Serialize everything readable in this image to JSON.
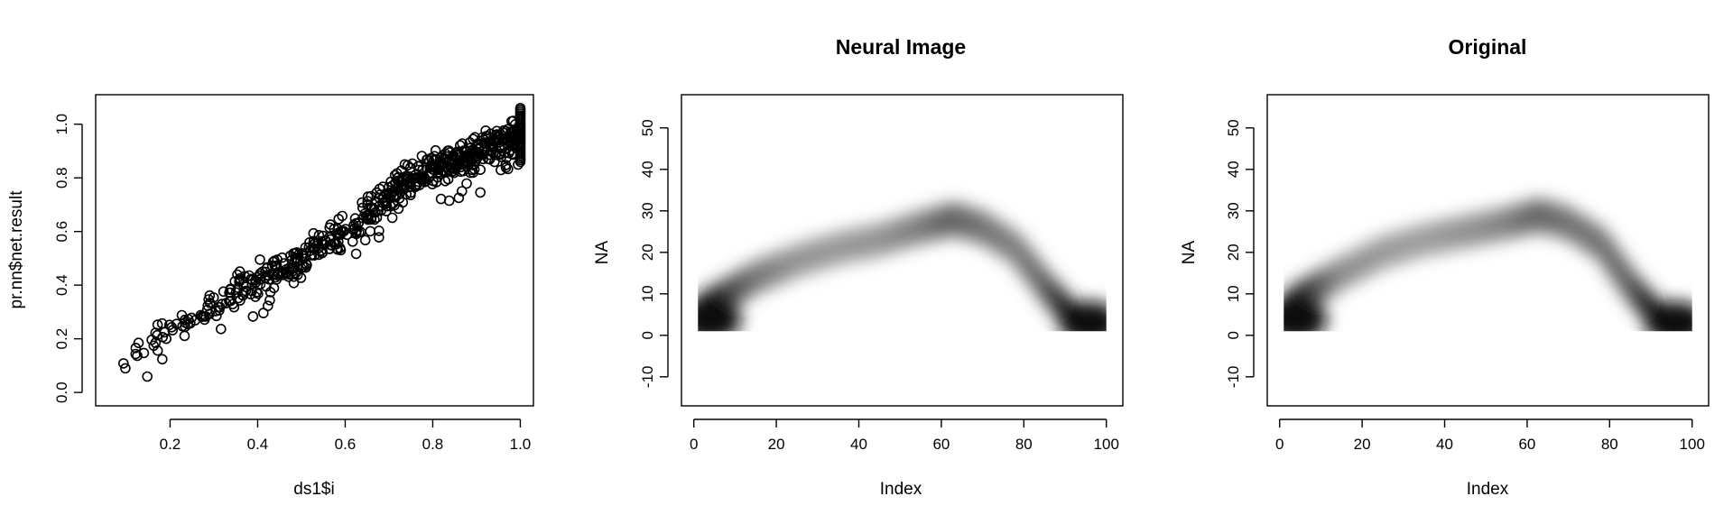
{
  "chart_data": [
    {
      "type": "scatter",
      "title": "",
      "xlabel": "ds1$i",
      "ylabel": "pr.nn$net.result",
      "xlim": [
        0.03,
        1.03
      ],
      "ylim": [
        -0.05,
        1.11
      ],
      "xticks": [
        0.2,
        0.4,
        0.6,
        0.8,
        1.0
      ],
      "xtick_labels": [
        "0.2",
        "0.4",
        "0.6",
        "0.8",
        "1.0"
      ],
      "yticks": [
        0.0,
        0.2,
        0.4,
        0.6,
        0.8,
        1.0
      ],
      "ytick_labels": [
        "0.0",
        "0.2",
        "0.4",
        "0.6",
        "0.8",
        "1.0"
      ],
      "marker": "open-circle",
      "trend": [
        [
          0.06,
          0.08
        ],
        [
          0.2,
          0.24
        ],
        [
          0.4,
          0.42
        ],
        [
          0.55,
          0.55
        ],
        [
          0.65,
          0.67
        ],
        [
          0.75,
          0.8
        ],
        [
          0.9,
          0.9
        ],
        [
          1.0,
          0.96
        ]
      ],
      "n_points": 600
    },
    {
      "type": "heatmap",
      "title": "Neural Image",
      "xlabel": "Index",
      "ylabel": "NA",
      "xlim": [
        -3,
        104
      ],
      "ylim": [
        -17,
        58
      ],
      "xticks": [
        0,
        20,
        40,
        60,
        80,
        100
      ],
      "xtick_labels": [
        "0",
        "20",
        "40",
        "60",
        "80",
        "100"
      ],
      "yticks": [
        -10,
        0,
        10,
        20,
        30,
        40,
        50
      ],
      "ytick_labels": [
        "-10",
        "0",
        "10",
        "20",
        "30",
        "40",
        "50"
      ],
      "colormap": "white-to-black",
      "raster_extent": {
        "x": [
          1,
          100
        ],
        "y": [
          1,
          40
        ]
      },
      "ridge": [
        [
          1,
          5
        ],
        [
          5,
          8
        ],
        [
          15,
          14
        ],
        [
          25,
          18
        ],
        [
          35,
          21
        ],
        [
          45,
          23
        ],
        [
          55,
          26
        ],
        [
          63,
          28
        ],
        [
          70,
          26
        ],
        [
          78,
          21
        ],
        [
          85,
          12
        ],
        [
          92,
          4
        ],
        [
          100,
          2
        ]
      ],
      "peak_intensity": [
        0.95,
        0.9,
        0.55,
        0.42,
        0.4,
        0.42,
        0.5,
        0.62,
        0.55,
        0.5,
        0.6,
        0.95,
        0.95
      ]
    },
    {
      "type": "heatmap",
      "title": "Original",
      "xlabel": "Index",
      "ylabel": "NA",
      "xlim": [
        -3,
        104
      ],
      "ylim": [
        -17,
        58
      ],
      "xticks": [
        0,
        20,
        40,
        60,
        80,
        100
      ],
      "xtick_labels": [
        "0",
        "20",
        "40",
        "60",
        "80",
        "100"
      ],
      "yticks": [
        -10,
        0,
        10,
        20,
        30,
        40,
        50
      ],
      "ytick_labels": [
        "-10",
        "0",
        "10",
        "20",
        "30",
        "40",
        "50"
      ],
      "colormap": "white-to-black",
      "raster_extent": {
        "x": [
          1,
          100
        ],
        "y": [
          1,
          40
        ]
      },
      "ridge": [
        [
          1,
          5
        ],
        [
          5,
          9
        ],
        [
          15,
          15
        ],
        [
          25,
          20
        ],
        [
          35,
          23
        ],
        [
          45,
          25
        ],
        [
          55,
          27
        ],
        [
          63,
          29
        ],
        [
          70,
          27
        ],
        [
          78,
          22
        ],
        [
          85,
          12
        ],
        [
          92,
          4
        ],
        [
          100,
          2
        ]
      ],
      "peak_intensity": [
        0.95,
        0.92,
        0.45,
        0.4,
        0.38,
        0.42,
        0.48,
        0.6,
        0.55,
        0.55,
        0.62,
        0.95,
        0.95
      ]
    }
  ]
}
